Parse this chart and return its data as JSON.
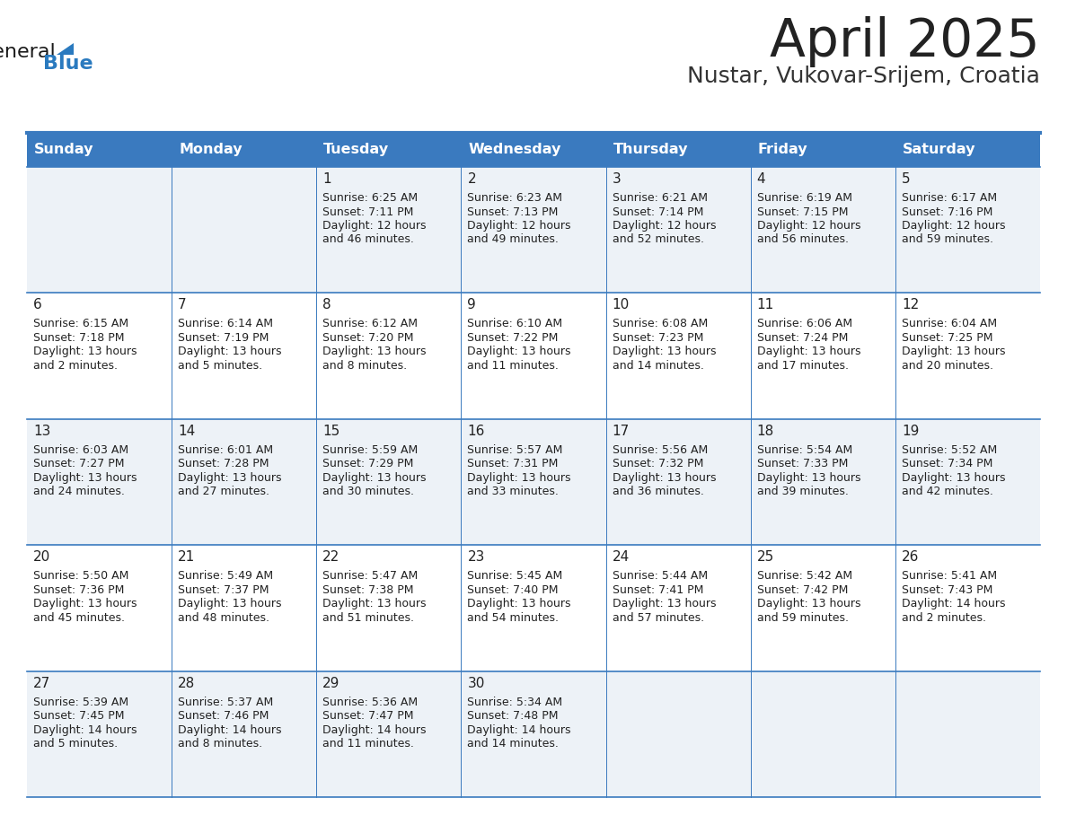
{
  "title": "April 2025",
  "subtitle": "Nustar, Vukovar-Srijem, Croatia",
  "header_color": "#3a7abf",
  "header_text_color": "#ffffff",
  "weekdays": [
    "Sunday",
    "Monday",
    "Tuesday",
    "Wednesday",
    "Thursday",
    "Friday",
    "Saturday"
  ],
  "bg_color": "#ffffff",
  "row_odd_color": "#edf2f7",
  "row_even_color": "#ffffff",
  "border_color": "#3a7abf",
  "title_color": "#222222",
  "subtitle_color": "#333333",
  "cell_text_color": "#222222",
  "day_num_color": "#222222",
  "logo_black": "#1a1a1a",
  "logo_blue": "#2a7abf",
  "calendar": [
    [
      null,
      null,
      {
        "day": 1,
        "sunrise": "6:25 AM",
        "sunset": "7:11 PM",
        "daylight": "12 hours and 46 minutes."
      },
      {
        "day": 2,
        "sunrise": "6:23 AM",
        "sunset": "7:13 PM",
        "daylight": "12 hours and 49 minutes."
      },
      {
        "day": 3,
        "sunrise": "6:21 AM",
        "sunset": "7:14 PM",
        "daylight": "12 hours and 52 minutes."
      },
      {
        "day": 4,
        "sunrise": "6:19 AM",
        "sunset": "7:15 PM",
        "daylight": "12 hours and 56 minutes."
      },
      {
        "day": 5,
        "sunrise": "6:17 AM",
        "sunset": "7:16 PM",
        "daylight": "12 hours and 59 minutes."
      }
    ],
    [
      {
        "day": 6,
        "sunrise": "6:15 AM",
        "sunset": "7:18 PM",
        "daylight": "13 hours and 2 minutes."
      },
      {
        "day": 7,
        "sunrise": "6:14 AM",
        "sunset": "7:19 PM",
        "daylight": "13 hours and 5 minutes."
      },
      {
        "day": 8,
        "sunrise": "6:12 AM",
        "sunset": "7:20 PM",
        "daylight": "13 hours and 8 minutes."
      },
      {
        "day": 9,
        "sunrise": "6:10 AM",
        "sunset": "7:22 PM",
        "daylight": "13 hours and 11 minutes."
      },
      {
        "day": 10,
        "sunrise": "6:08 AM",
        "sunset": "7:23 PM",
        "daylight": "13 hours and 14 minutes."
      },
      {
        "day": 11,
        "sunrise": "6:06 AM",
        "sunset": "7:24 PM",
        "daylight": "13 hours and 17 minutes."
      },
      {
        "day": 12,
        "sunrise": "6:04 AM",
        "sunset": "7:25 PM",
        "daylight": "13 hours and 20 minutes."
      }
    ],
    [
      {
        "day": 13,
        "sunrise": "6:03 AM",
        "sunset": "7:27 PM",
        "daylight": "13 hours and 24 minutes."
      },
      {
        "day": 14,
        "sunrise": "6:01 AM",
        "sunset": "7:28 PM",
        "daylight": "13 hours and 27 minutes."
      },
      {
        "day": 15,
        "sunrise": "5:59 AM",
        "sunset": "7:29 PM",
        "daylight": "13 hours and 30 minutes."
      },
      {
        "day": 16,
        "sunrise": "5:57 AM",
        "sunset": "7:31 PM",
        "daylight": "13 hours and 33 minutes."
      },
      {
        "day": 17,
        "sunrise": "5:56 AM",
        "sunset": "7:32 PM",
        "daylight": "13 hours and 36 minutes."
      },
      {
        "day": 18,
        "sunrise": "5:54 AM",
        "sunset": "7:33 PM",
        "daylight": "13 hours and 39 minutes."
      },
      {
        "day": 19,
        "sunrise": "5:52 AM",
        "sunset": "7:34 PM",
        "daylight": "13 hours and 42 minutes."
      }
    ],
    [
      {
        "day": 20,
        "sunrise": "5:50 AM",
        "sunset": "7:36 PM",
        "daylight": "13 hours and 45 minutes."
      },
      {
        "day": 21,
        "sunrise": "5:49 AM",
        "sunset": "7:37 PM",
        "daylight": "13 hours and 48 minutes."
      },
      {
        "day": 22,
        "sunrise": "5:47 AM",
        "sunset": "7:38 PM",
        "daylight": "13 hours and 51 minutes."
      },
      {
        "day": 23,
        "sunrise": "5:45 AM",
        "sunset": "7:40 PM",
        "daylight": "13 hours and 54 minutes."
      },
      {
        "day": 24,
        "sunrise": "5:44 AM",
        "sunset": "7:41 PM",
        "daylight": "13 hours and 57 minutes."
      },
      {
        "day": 25,
        "sunrise": "5:42 AM",
        "sunset": "7:42 PM",
        "daylight": "13 hours and 59 minutes."
      },
      {
        "day": 26,
        "sunrise": "5:41 AM",
        "sunset": "7:43 PM",
        "daylight": "14 hours and 2 minutes."
      }
    ],
    [
      {
        "day": 27,
        "sunrise": "5:39 AM",
        "sunset": "7:45 PM",
        "daylight": "14 hours and 5 minutes."
      },
      {
        "day": 28,
        "sunrise": "5:37 AM",
        "sunset": "7:46 PM",
        "daylight": "14 hours and 8 minutes."
      },
      {
        "day": 29,
        "sunrise": "5:36 AM",
        "sunset": "7:47 PM",
        "daylight": "14 hours and 11 minutes."
      },
      {
        "day": 30,
        "sunrise": "5:34 AM",
        "sunset": "7:48 PM",
        "daylight": "14 hours and 14 minutes."
      },
      null,
      null,
      null
    ]
  ]
}
